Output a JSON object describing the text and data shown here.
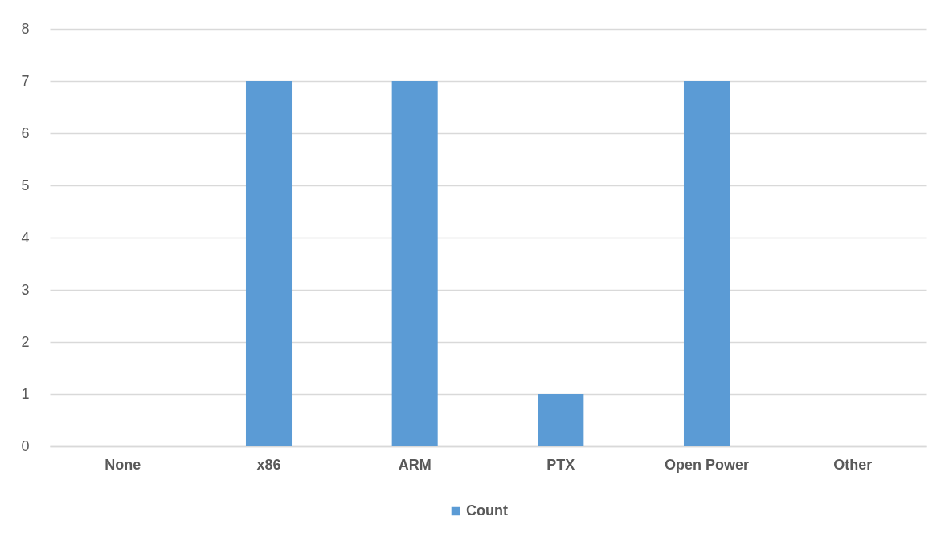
{
  "chart_data": {
    "type": "bar",
    "categories": [
      "None",
      "x86",
      "ARM",
      "PTX",
      "Open Power",
      "Other"
    ],
    "series": [
      {
        "name": "Count",
        "color": "#5b9bd5",
        "values": [
          0,
          7,
          7,
          1,
          7,
          0
        ]
      }
    ],
    "ylim": [
      0,
      8
    ],
    "yticks": [
      0,
      1,
      2,
      3,
      4,
      5,
      6,
      7,
      8
    ],
    "grid": "y",
    "legend": "bottom"
  }
}
